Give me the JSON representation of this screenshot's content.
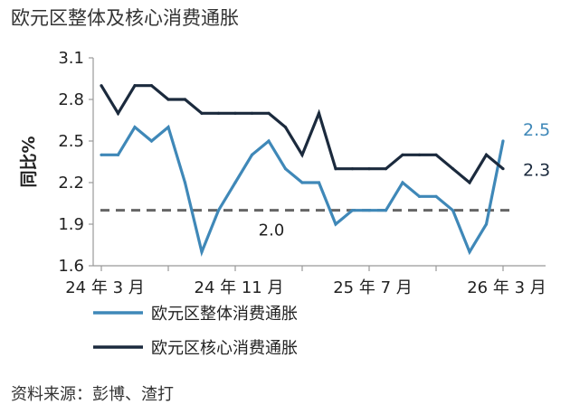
{
  "title": "欧元区整体及核心消费通胀",
  "source": "资料来源：彭博、渣打",
  "chart_data": {
    "type": "line",
    "ylabel": "同比%",
    "ylim": [
      1.6,
      3.1
    ],
    "yticks": [
      "1.6",
      "1.9",
      "2.2",
      "2.5",
      "2.8",
      "3.1"
    ],
    "x_ticks": [
      {
        "index": 0,
        "label": "24 年 3 月"
      },
      {
        "index": 8,
        "label": "24 年 11 月"
      },
      {
        "index": 16,
        "label": "25 年 7 月"
      },
      {
        "index": 24,
        "label": "26 年 3 月"
      }
    ],
    "x": [
      "24-03",
      "24-04",
      "24-05",
      "24-06",
      "24-07",
      "24-08",
      "24-09",
      "24-10",
      "24-11",
      "24-12",
      "25-01",
      "25-02",
      "25-03",
      "25-04",
      "25-05",
      "25-06",
      "25-07",
      "25-08",
      "25-09",
      "25-10",
      "25-11",
      "25-12",
      "26-01",
      "26-02",
      "26-03"
    ],
    "series": [
      {
        "name": "欧元区整体消费通胀",
        "color": "#3f88b8",
        "values": [
          2.4,
          2.4,
          2.6,
          2.5,
          2.6,
          2.2,
          1.7,
          2.0,
          2.2,
          2.4,
          2.5,
          2.3,
          2.2,
          2.2,
          1.9,
          2.0,
          2.0,
          2.0,
          2.2,
          2.1,
          2.1,
          2.0,
          1.7,
          1.9,
          2.5
        ],
        "end_label": "2.5"
      },
      {
        "name": "欧元区核心消费通胀",
        "color": "#1b2a3d",
        "values": [
          2.9,
          2.7,
          2.9,
          2.9,
          2.8,
          2.8,
          2.7,
          2.7,
          2.7,
          2.7,
          2.7,
          2.6,
          2.4,
          2.7,
          2.3,
          2.3,
          2.3,
          2.3,
          2.4,
          2.4,
          2.4,
          2.3,
          2.2,
          2.4,
          2.3
        ],
        "end_label": "2.3"
      }
    ],
    "reference_line": {
      "value": 2.0,
      "label": "2.0",
      "color": "#666666"
    },
    "grid": false,
    "legend_position": "bottom-left"
  }
}
